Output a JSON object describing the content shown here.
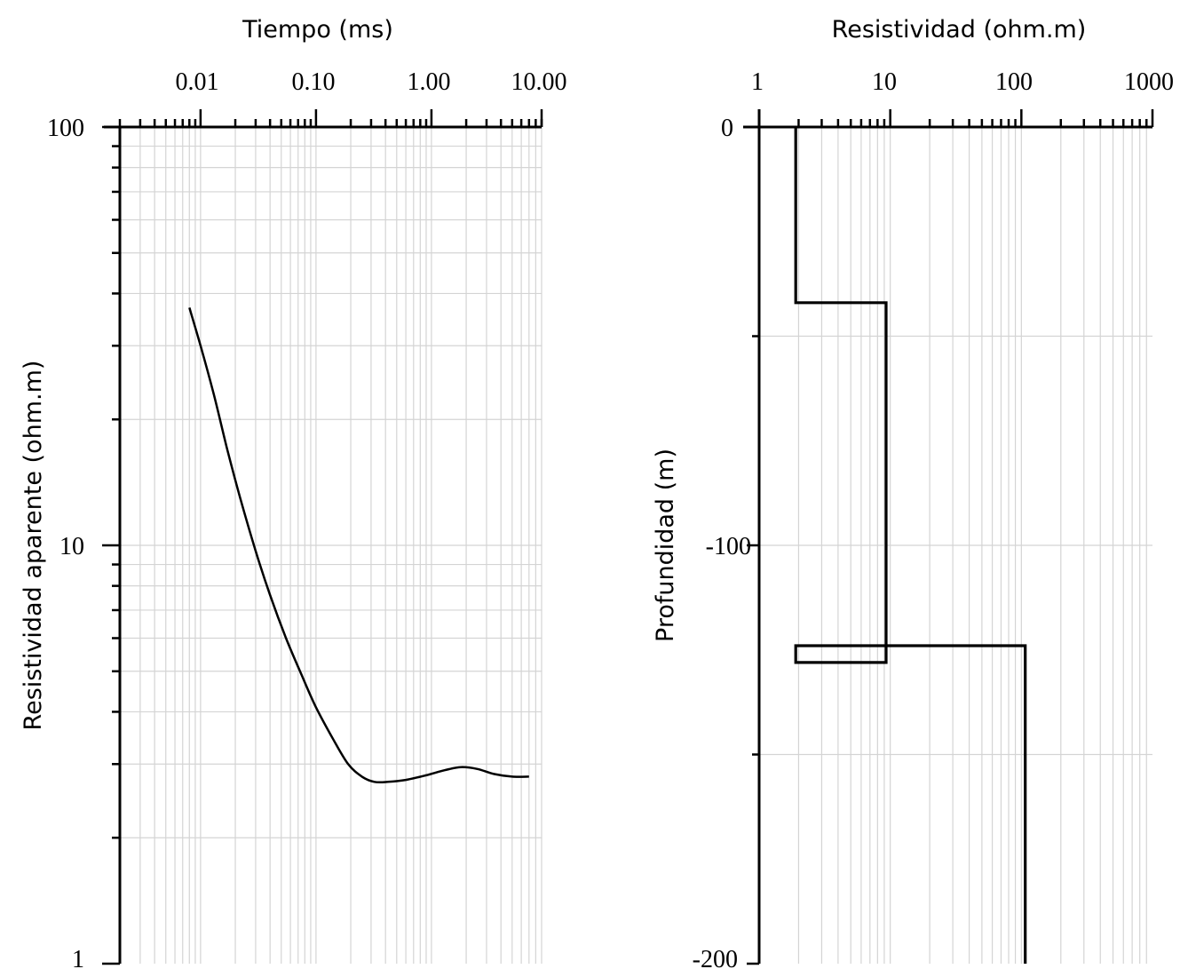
{
  "chart_data": [
    {
      "type": "line",
      "xlabel": "Tiempo (ms)",
      "ylabel": "Resistividad aparente (ohm.m)",
      "x_scale": "log",
      "y_scale": "log",
      "xlim": [
        0.002,
        9
      ],
      "ylim": [
        1,
        100
      ],
      "x_ticks": [
        0.01,
        0.1,
        1,
        10
      ],
      "x_tick_labels": [
        "0.01",
        "0.10",
        "1.00",
        "10.00"
      ],
      "y_ticks": [
        1,
        10,
        100
      ],
      "y_tick_labels": [
        "1",
        "10",
        "100"
      ],
      "x_axis_position": "top",
      "grid": true,
      "series": [
        {
          "x": [
            0.008,
            0.01,
            0.013,
            0.017,
            0.022,
            0.03,
            0.04,
            0.055,
            0.075,
            0.1,
            0.14,
            0.19,
            0.25,
            0.32,
            0.42,
            0.6,
            0.9,
            1.3,
            1.8,
            2.5,
            3.5,
            5,
            7
          ],
          "y": [
            37,
            30,
            23,
            17,
            13,
            9.7,
            7.6,
            6,
            4.9,
            4.1,
            3.45,
            3,
            2.8,
            2.72,
            2.72,
            2.75,
            2.82,
            2.9,
            2.95,
            2.92,
            2.84,
            2.8,
            2.8
          ]
        }
      ]
    },
    {
      "type": "line",
      "xlabel": "Resistividad (ohm.m)",
      "ylabel": "Profundidad (m)",
      "x_scale": "log",
      "xlim": [
        1,
        1000
      ],
      "ylim": [
        -200,
        0
      ],
      "x_ticks": [
        1,
        10,
        100,
        1000
      ],
      "x_tick_labels": [
        "1",
        "10",
        "100",
        "1000"
      ],
      "y_ticks": [
        0,
        -100,
        -200
      ],
      "y_tick_labels": [
        "0",
        "-100",
        "-200"
      ],
      "x_axis_position": "top",
      "grid": true,
      "series": [
        {
          "x": [
            1.9,
            1.9,
            9.3,
            9.3,
            1.9,
            1.9,
            107,
            107
          ],
          "y": [
            0,
            -42,
            -42,
            -128,
            -128,
            -124,
            -124,
            -200
          ]
        }
      ]
    }
  ]
}
